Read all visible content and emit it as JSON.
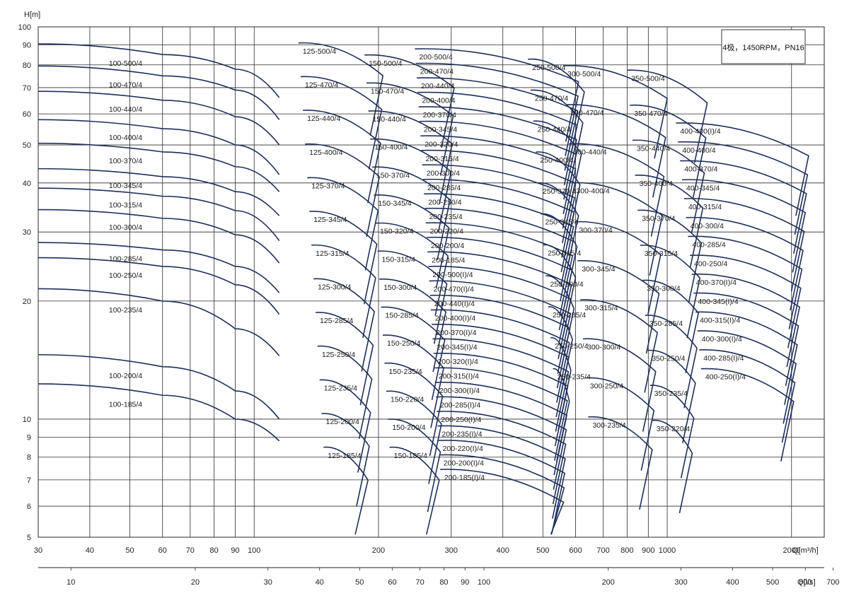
{
  "chart_data": {
    "type": "line",
    "title": "",
    "note": "4极，1450RPM，PN16",
    "ylabel": "H[m]",
    "xlabel": "Q[m³/h]",
    "xlabel2": "Q[l/s]",
    "xscale": "log",
    "yscale": "log",
    "xlim": [
      30,
      2400
    ],
    "ylim": [
      5,
      100
    ],
    "grid": true,
    "x_ticks": [
      30,
      40,
      50,
      60,
      70,
      80,
      90,
      100,
      200,
      300,
      400,
      500,
      600,
      700,
      800,
      900,
      1000,
      2000
    ],
    "x_tick_labels": [
      "30",
      "40",
      "50",
      "60",
      "70",
      "80",
      "90",
      "100",
      "200",
      "300",
      "400",
      "500",
      "600",
      "700",
      "800",
      "900",
      "1000",
      "2000"
    ],
    "y_ticks": [
      5,
      6,
      7,
      8,
      9,
      10,
      20,
      30,
      40,
      50,
      60,
      70,
      80,
      90,
      100
    ],
    "y_tick_labels": [
      "5",
      "6",
      "7",
      "8",
      "9",
      "10",
      "20",
      "30",
      "40",
      "50",
      "60",
      "70",
      "80",
      "90",
      "100"
    ],
    "x2_ticks": [
      10,
      20,
      30,
      40,
      50,
      60,
      70,
      80,
      90,
      100,
      200,
      300,
      400,
      500,
      600,
      700
    ],
    "x2_tick_labels": [
      "10",
      "20",
      "30",
      "40",
      "50",
      "60",
      "70",
      "80",
      "90",
      "100",
      "200",
      "300",
      "400",
      "500",
      "600",
      "700"
    ],
    "series": [
      {
        "name": "100-500/4",
        "x": [
          30,
          60,
          90,
          115
        ],
        "y": [
          90.5,
          85,
          78,
          66
        ]
      },
      {
        "name": "100-470/4",
        "x": [
          30,
          60,
          90,
          115
        ],
        "y": [
          79.5,
          75,
          69,
          58
        ]
      },
      {
        "name": "100-440/4",
        "x": [
          30,
          60,
          90,
          115
        ],
        "y": [
          68.5,
          65,
          59,
          50
        ]
      },
      {
        "name": "100-400/4",
        "x": [
          30,
          60,
          90,
          115
        ],
        "y": [
          58,
          55,
          50,
          42
        ]
      },
      {
        "name": "100-370/4",
        "x": [
          30,
          60,
          90,
          115
        ],
        "y": [
          50.5,
          48,
          44,
          38
        ]
      },
      {
        "name": "100-345/4",
        "x": [
          30,
          60,
          90,
          115
        ],
        "y": [
          43.5,
          41.5,
          38,
          33
        ]
      },
      {
        "name": "100-315/4",
        "x": [
          30,
          60,
          90,
          115
        ],
        "y": [
          38.8,
          37,
          34,
          28.5
        ]
      },
      {
        "name": "100-300/4",
        "x": [
          30,
          60,
          90,
          115
        ],
        "y": [
          34.2,
          32.5,
          29.5,
          25
        ]
      },
      {
        "name": "100-285/4",
        "x": [
          30,
          60,
          90,
          115
        ],
        "y": [
          28.2,
          27,
          24.5,
          21
        ]
      },
      {
        "name": "100-250/4",
        "x": [
          30,
          60,
          90,
          115
        ],
        "y": [
          25.8,
          24.5,
          22,
          18.5
        ]
      },
      {
        "name": "100-235/4",
        "x": [
          30,
          60,
          90,
          115
        ],
        "y": [
          21.5,
          20,
          17,
          14.5
        ]
      },
      {
        "name": "100-200/4",
        "x": [
          30,
          60,
          90,
          115
        ],
        "y": [
          14.6,
          13.6,
          11.8,
          10
        ]
      },
      {
        "name": "100-185/4",
        "x": [
          30,
          60,
          90,
          115
        ],
        "y": [
          12.3,
          11.5,
          10,
          8.8
        ]
      }
    ],
    "series_labels": [
      "125-500/4",
      "125-470/4",
      "125-440/4",
      "125-400/4",
      "125-370/4",
      "125-345/4",
      "125-315/4",
      "125-300/4",
      "125-285/4",
      "125-250/4",
      "125-235/4",
      "125-200/4",
      "125-185/4",
      "150-500/4",
      "150-470/4",
      "150-440/4",
      "150-400/4",
      "150-370/4",
      "150-345/4",
      "150-320/4",
      "150-315/4",
      "150-300/4",
      "150-285/4",
      "150-250/4",
      "150-235/4",
      "150-220/4",
      "150-200/4",
      "150-185/4",
      "200-500/4",
      "200-470/4",
      "200-440/4",
      "200-400/4",
      "200-370/4",
      "200-345/4",
      "200-320/4",
      "200-315/4",
      "200-300/4",
      "200-285/4",
      "200-250/4",
      "200-235/4",
      "200-220/4",
      "200-200/4",
      "200-185/4",
      "200-500(I)/4",
      "200-470(I)/4",
      "200-440(I)/4",
      "200-400(I)/4",
      "200-370(I)/4",
      "200-345(I)/4",
      "200-320(I)/4",
      "200-315(I)/4",
      "200-300(I)/4",
      "200-285(I)/4",
      "200-250(I)/4",
      "200-235(I)/4",
      "200-220(I)/4",
      "200-200(I)/4",
      "200-185(I)/4",
      "250-500/4",
      "250-470/4",
      "250-440/4",
      "250-400/4",
      "250-370/4",
      "250-345/4",
      "250-315/4",
      "250-300/4",
      "250-285/4",
      "250-250/4",
      "250-235/4",
      "300-500/4",
      "300-470/4",
      "300-440/4",
      "300-400/4",
      "300-370/4",
      "300-345/4",
      "300-315/4",
      "300-300/4",
      "300-250/4",
      "300-235/4",
      "350-500/4",
      "350-470/4",
      "350-440/4",
      "350-400/4",
      "350-370/4",
      "350-315/4",
      "350-300/4",
      "350-285/4",
      "350-250/4",
      "350-235/4",
      "350-220/4",
      "400-400(I)/4",
      "400-400/4",
      "400-370/4",
      "400-345/4",
      "400-315/4",
      "400-300/4",
      "400-285/4",
      "400-250/4",
      "400-370(I)/4",
      "400-345(I)/4",
      "400-315(I)/4",
      "400-300(I)/4",
      "400-285(I)/4",
      "400-250(I)/4"
    ]
  }
}
